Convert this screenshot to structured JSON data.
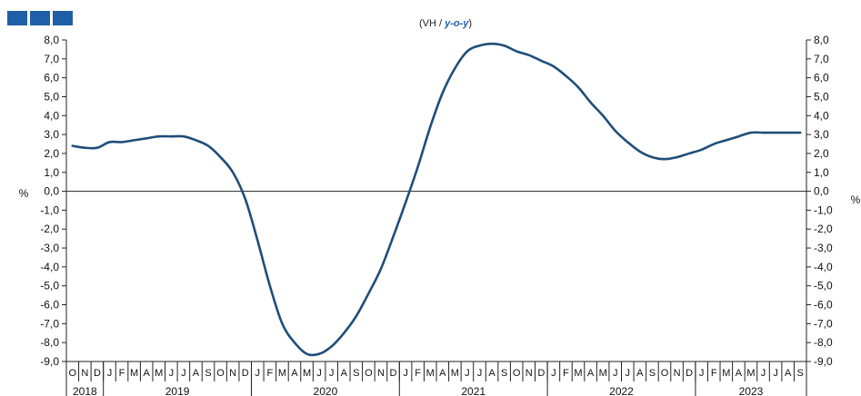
{
  "header": {
    "subtitle_prefix": "(VH / ",
    "subtitle_unit": "y-o-y",
    "subtitle_suffix": ")",
    "logo_color": "#1f5fa8"
  },
  "colors": {
    "line": "#1e4e79",
    "axis": "#222222",
    "accent": "#1f5fa8"
  },
  "chart_data": {
    "type": "line",
    "title": "",
    "subtitle": "(VH / y-o-y)",
    "ylabel_left": "%",
    "ylabel_right": "%",
    "ylim": [
      -9,
      8
    ],
    "yticks": [
      "8,0",
      "7,0",
      "6,0",
      "5,0",
      "4,0",
      "3,0",
      "2,0",
      "1,0",
      "0,0",
      "-1,0",
      "-2,0",
      "-3,0",
      "-4,0",
      "-5,0",
      "-6,0",
      "-7,0",
      "-8,0",
      "-9,0"
    ],
    "month_labels": [
      "O",
      "N",
      "D",
      "J",
      "F",
      "M",
      "A",
      "M",
      "J",
      "J",
      "A",
      "S",
      "O",
      "N",
      "D",
      "J",
      "F",
      "M",
      "A",
      "M",
      "J",
      "J",
      "A",
      "S",
      "O",
      "N",
      "D",
      "J",
      "F",
      "M",
      "A",
      "M",
      "J",
      "J",
      "A",
      "S",
      "O",
      "N",
      "D",
      "J",
      "F",
      "M",
      "A",
      "M",
      "J",
      "J",
      "A",
      "S",
      "O",
      "N",
      "D",
      "J",
      "F",
      "M",
      "A",
      "M",
      "J",
      "J",
      "A",
      "S"
    ],
    "years": [
      {
        "label": "2018",
        "start": 0,
        "end": 3
      },
      {
        "label": "2019",
        "start": 3,
        "end": 15
      },
      {
        "label": "2020",
        "start": 15,
        "end": 27
      },
      {
        "label": "2021",
        "start": 27,
        "end": 39
      },
      {
        "label": "2022",
        "start": 39,
        "end": 51
      },
      {
        "label": "2023",
        "start": 51,
        "end": 60
      }
    ],
    "x": [
      "2018-10",
      "2018-11",
      "2018-12",
      "2019-01",
      "2019-02",
      "2019-03",
      "2019-04",
      "2019-05",
      "2019-06",
      "2019-07",
      "2019-08",
      "2019-09",
      "2019-10",
      "2019-11",
      "2019-12",
      "2020-01",
      "2020-02",
      "2020-03",
      "2020-04",
      "2020-05",
      "2020-06",
      "2020-07",
      "2020-08",
      "2020-09",
      "2020-10",
      "2020-11",
      "2020-12",
      "2021-01",
      "2021-02",
      "2021-03",
      "2021-04",
      "2021-05",
      "2021-06",
      "2021-07",
      "2021-08",
      "2021-09",
      "2021-10",
      "2021-11",
      "2021-12",
      "2022-01",
      "2022-02",
      "2022-03",
      "2022-04",
      "2022-05",
      "2022-06",
      "2022-07",
      "2022-08",
      "2022-09",
      "2022-10",
      "2022-11",
      "2022-12",
      "2023-01",
      "2023-02",
      "2023-03",
      "2023-04",
      "2023-05",
      "2023-06",
      "2023-07",
      "2023-08",
      "2023-09"
    ],
    "series": [
      {
        "values": [
          2.4,
          2.3,
          2.3,
          2.6,
          2.6,
          2.7,
          2.8,
          2.9,
          2.9,
          2.9,
          2.7,
          2.4,
          1.8,
          1.0,
          -0.4,
          -2.6,
          -5.0,
          -7.0,
          -8.0,
          -8.6,
          -8.6,
          -8.2,
          -7.5,
          -6.6,
          -5.4,
          -4.1,
          -2.4,
          -0.6,
          1.3,
          3.4,
          5.2,
          6.5,
          7.4,
          7.7,
          7.8,
          7.7,
          7.4,
          7.2,
          6.9,
          6.6,
          6.1,
          5.5,
          4.7,
          4.0,
          3.2,
          2.6,
          2.1,
          1.8,
          1.7,
          1.8,
          2.0,
          2.2,
          2.5,
          2.7,
          2.9,
          3.1,
          3.1,
          3.1,
          3.1,
          3.1
        ]
      }
    ],
    "grid": false,
    "legend": "none"
  }
}
